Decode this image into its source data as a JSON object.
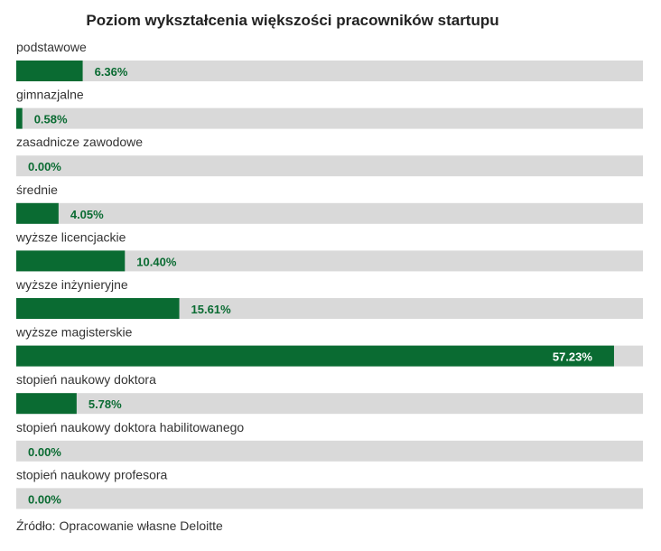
{
  "chart_data": {
    "type": "bar",
    "orientation": "horizontal",
    "title": "Poziom wykształcenia większości pracowników startupu",
    "source": "Źródło: Opracowanie własne Deloitte",
    "unit": "%",
    "xlim": [
      0,
      60
    ],
    "grid": false,
    "legend": "none",
    "categories": [
      "podstawowe",
      "gimnazjalne",
      "zasadnicze zawodowe",
      "średnie",
      "wyższe licencjackie",
      "wyższe inżynieryjne",
      "wyższe magisterskie",
      "stopień naukowy doktora",
      "stopień naukowy doktora habilitowanego",
      "stopień naukowy profesora"
    ],
    "values": [
      6.36,
      0.58,
      0.0,
      4.05,
      10.4,
      15.61,
      57.23,
      5.78,
      0.0,
      0.0
    ],
    "value_labels": [
      "6.36%",
      "0.58%",
      "0.00%",
      "4.05%",
      "10.40%",
      "15.61%",
      "57.23%",
      "5.78%",
      "0.00%",
      "0.00%"
    ],
    "colors": {
      "bar": "#0a6b32",
      "track": "#d9d9d9",
      "label_on_track": "#0a6b32",
      "label_on_bar": "#ffffff",
      "text": "#333333",
      "title": "#222222"
    }
  }
}
